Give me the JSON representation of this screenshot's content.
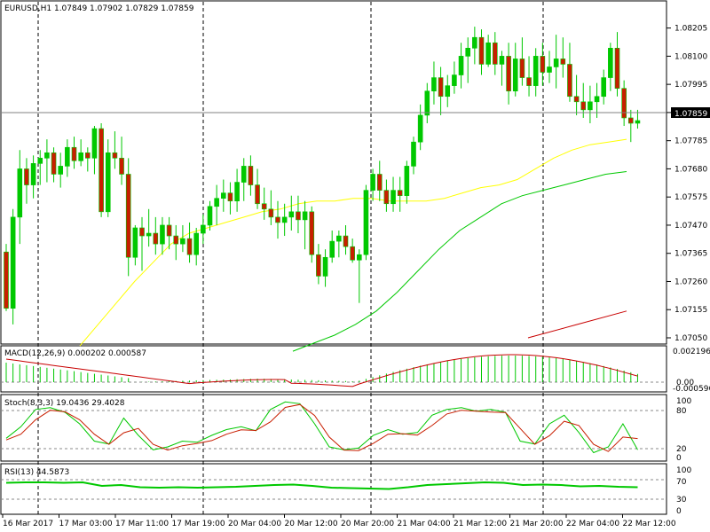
{
  "main": {
    "info": "EURUSD,H1  1.07849 1.07902 1.07829 1.07859",
    "price_ticks": [
      "1.08205",
      "1.08100",
      "1.07995",
      "1.07890",
      "1.07785",
      "1.07680",
      "1.07575",
      "1.07470",
      "1.07365",
      "1.07260",
      "1.07155",
      "1.07050"
    ],
    "current_price": "1.07859"
  },
  "macd": {
    "info": "MACD(12,26,9) 0.000202 0.000587",
    "ticks": [
      "0.002196",
      "0.00",
      "-0.000596"
    ]
  },
  "stoch": {
    "info": "Stoch(8,3,3) 19.0436 29.4028",
    "ticks": [
      "100",
      "80",
      "20",
      "0"
    ]
  },
  "rsi": {
    "info": "RSI(13) 44.5873",
    "ticks": [
      "100",
      "70",
      "30",
      "0"
    ]
  },
  "time_labels": [
    "16 Mar 2017",
    "17 Mar 03:00",
    "17 Mar 11:00",
    "17 Mar 19:00",
    "20 Mar 04:00",
    "20 Mar 12:00",
    "20 Mar 20:00",
    "21 Mar 04:00",
    "21 Mar 12:00",
    "21 Mar 20:00",
    "22 Mar 04:00",
    "22 Mar 12:00"
  ],
  "colors": {
    "bull": "#00c800",
    "bear": "#c81e00",
    "ma_fast": "#ffff00",
    "ma_mid": "#00c800",
    "ma_slow": "#c80000",
    "price_box": "#000000"
  },
  "chart_data": {
    "type": "candlestick",
    "symbol": "EURUSD",
    "timeframe": "H1",
    "ylim": [
      1.0705,
      1.0825
    ],
    "candles": [
      [
        1.0737,
        1.074,
        1.0715,
        1.0716
      ],
      [
        1.0716,
        1.0753,
        1.071,
        1.075
      ],
      [
        1.075,
        1.0775,
        1.074,
        1.0768
      ],
      [
        1.0768,
        1.0772,
        1.0755,
        1.0762
      ],
      [
        1.0762,
        1.0773,
        1.0757,
        1.077
      ],
      [
        1.077,
        1.0775,
        1.0762,
        1.0772
      ],
      [
        1.0772,
        1.0779,
        1.0763,
        1.0774
      ],
      [
        1.0774,
        1.0776,
        1.0763,
        1.0766
      ],
      [
        1.0766,
        1.0774,
        1.0761,
        1.0769
      ],
      [
        1.0769,
        1.0779,
        1.0765,
        1.0776
      ],
      [
        1.0776,
        1.078,
        1.0768,
        1.0771
      ],
      [
        1.0771,
        1.0779,
        1.0769,
        1.0774
      ],
      [
        1.0774,
        1.0776,
        1.0767,
        1.0772
      ],
      [
        1.0772,
        1.0784,
        1.0766,
        1.0783
      ],
      [
        1.0783,
        1.0785,
        1.075,
        1.0752
      ],
      [
        1.0752,
        1.0779,
        1.075,
        1.0774
      ],
      [
        1.0774,
        1.0782,
        1.0768,
        1.0772
      ],
      [
        1.0772,
        1.078,
        1.0762,
        1.0766
      ],
      [
        1.0766,
        1.0772,
        1.0728,
        1.0735
      ],
      [
        1.0735,
        1.0747,
        1.0732,
        1.0746
      ],
      [
        1.0746,
        1.075,
        1.073,
        1.0743
      ],
      [
        1.0743,
        1.0753,
        1.0739,
        1.0744
      ],
      [
        1.0744,
        1.075,
        1.0736,
        1.074
      ],
      [
        1.074,
        1.075,
        1.0736,
        1.0747
      ],
      [
        1.0747,
        1.075,
        1.0738,
        1.0743
      ],
      [
        1.0743,
        1.0747,
        1.0734,
        1.074
      ],
      [
        1.074,
        1.0747,
        1.0737,
        1.0742
      ],
      [
        1.0742,
        1.0748,
        1.0733,
        1.0736
      ],
      [
        1.0736,
        1.0746,
        1.0732,
        1.0744
      ],
      [
        1.0744,
        1.0751,
        1.074,
        1.0747
      ],
      [
        1.0747,
        1.0756,
        1.0745,
        1.0754
      ],
      [
        1.0754,
        1.0762,
        1.0747,
        1.0757
      ],
      [
        1.0757,
        1.0764,
        1.0752,
        1.0759
      ],
      [
        1.0759,
        1.0763,
        1.0751,
        1.0756
      ],
      [
        1.0756,
        1.0768,
        1.0752,
        1.0763
      ],
      [
        1.0763,
        1.0772,
        1.0756,
        1.0769
      ],
      [
        1.0769,
        1.0773,
        1.0758,
        1.0762
      ],
      [
        1.0762,
        1.0768,
        1.0753,
        1.0755
      ],
      [
        1.0755,
        1.0761,
        1.0749,
        1.0753
      ],
      [
        1.0753,
        1.076,
        1.0747,
        1.075
      ],
      [
        1.075,
        1.0756,
        1.0742,
        1.0748
      ],
      [
        1.0748,
        1.0755,
        1.0743,
        1.075
      ],
      [
        1.075,
        1.0758,
        1.0745,
        1.0752
      ],
      [
        1.0752,
        1.0758,
        1.0744,
        1.0749
      ],
      [
        1.0749,
        1.0756,
        1.0738,
        1.0752
      ],
      [
        1.0752,
        1.0754,
        1.0733,
        1.0736
      ],
      [
        1.0736,
        1.074,
        1.0725,
        1.0728
      ],
      [
        1.0728,
        1.0738,
        1.0724,
        1.0735
      ],
      [
        1.0735,
        1.0745,
        1.0733,
        1.0741
      ],
      [
        1.0741,
        1.0745,
        1.0735,
        1.0743
      ],
      [
        1.0743,
        1.0747,
        1.0736,
        1.0739
      ],
      [
        1.0739,
        1.0742,
        1.0733,
        1.0734
      ],
      [
        1.0734,
        1.0738,
        1.0718,
        1.0736
      ],
      [
        1.0736,
        1.0762,
        1.0734,
        1.076
      ],
      [
        1.076,
        1.0768,
        1.0756,
        1.0766
      ],
      [
        1.0766,
        1.0771,
        1.0756,
        1.076
      ],
      [
        1.076,
        1.0764,
        1.0752,
        1.0755
      ],
      [
        1.0755,
        1.0765,
        1.0752,
        1.076
      ],
      [
        1.076,
        1.0765,
        1.0752,
        1.0758
      ],
      [
        1.0758,
        1.0771,
        1.0755,
        1.0769
      ],
      [
        1.0769,
        1.078,
        1.0766,
        1.0778
      ],
      [
        1.0778,
        1.0792,
        1.0775,
        1.0788
      ],
      [
        1.0788,
        1.08,
        1.0785,
        1.0797
      ],
      [
        1.0797,
        1.0808,
        1.0792,
        1.0802
      ],
      [
        1.0802,
        1.0806,
        1.0788,
        1.0795
      ],
      [
        1.0795,
        1.0803,
        1.0791,
        1.0799
      ],
      [
        1.0799,
        1.0808,
        1.0796,
        1.0803
      ],
      [
        1.0803,
        1.0815,
        1.0798,
        1.081
      ],
      [
        1.081,
        1.0817,
        1.08,
        1.0813
      ],
      [
        1.0813,
        1.0821,
        1.0807,
        1.0817
      ],
      [
        1.0817,
        1.082,
        1.0803,
        1.0807
      ],
      [
        1.0807,
        1.0818,
        1.0806,
        1.0815
      ],
      [
        1.0815,
        1.0819,
        1.0803,
        1.0807
      ],
      [
        1.0807,
        1.0812,
        1.0799,
        1.081
      ],
      [
        1.081,
        1.0815,
        1.0792,
        1.0797
      ],
      [
        1.0797,
        1.0815,
        1.0795,
        1.0809
      ],
      [
        1.0809,
        1.0817,
        1.0799,
        1.0802
      ],
      [
        1.0802,
        1.081,
        1.0795,
        1.0799
      ],
      [
        1.0799,
        1.0813,
        1.0795,
        1.081
      ],
      [
        1.081,
        1.0815,
        1.0799,
        1.0804
      ],
      [
        1.0804,
        1.0812,
        1.08,
        1.0806
      ],
      [
        1.0806,
        1.0818,
        1.0798,
        1.0809
      ],
      [
        1.0809,
        1.0817,
        1.0802,
        1.0807
      ],
      [
        1.0807,
        1.0815,
        1.0793,
        1.0795
      ],
      [
        1.0795,
        1.0803,
        1.0788,
        1.0793
      ],
      [
        1.0793,
        1.08,
        1.0787,
        1.079
      ],
      [
        1.079,
        1.0799,
        1.0785,
        1.0793
      ],
      [
        1.0793,
        1.08,
        1.0787,
        1.0795
      ],
      [
        1.0795,
        1.0805,
        1.0792,
        1.0802
      ],
      [
        1.0802,
        1.0815,
        1.0797,
        1.0813
      ],
      [
        1.0813,
        1.0819,
        1.0795,
        1.0798
      ],
      [
        1.0798,
        1.0801,
        1.0784,
        1.0787
      ],
      [
        1.0787,
        1.079,
        1.0778,
        1.0785
      ],
      [
        1.0785,
        1.079,
        1.0783,
        1.0786
      ]
    ],
    "ma_fast": [
      1.0702,
      1.071,
      1.0718,
      1.0726,
      1.0733,
      1.074,
      1.0744,
      1.0746,
      1.0748,
      1.075,
      1.0752,
      1.0753,
      1.0755,
      1.0756,
      1.0756,
      1.0757,
      1.0757,
      1.0756,
      1.0756,
      1.0756,
      1.0757,
      1.0759,
      1.0761,
      1.0762,
      1.0764,
      1.0768,
      1.0772,
      1.0775,
      1.0777,
      1.0778,
      1.0779
    ],
    "ma_mid": [
      1.07,
      1.0703,
      1.0706,
      1.071,
      1.0715,
      1.0722,
      1.073,
      1.0738,
      1.0745,
      1.075,
      1.0755,
      1.0758,
      1.076,
      1.0762,
      1.0764,
      1.0766,
      1.0767
    ],
    "ma_slow": [
      1.0705,
      1.071,
      1.0715
    ]
  }
}
